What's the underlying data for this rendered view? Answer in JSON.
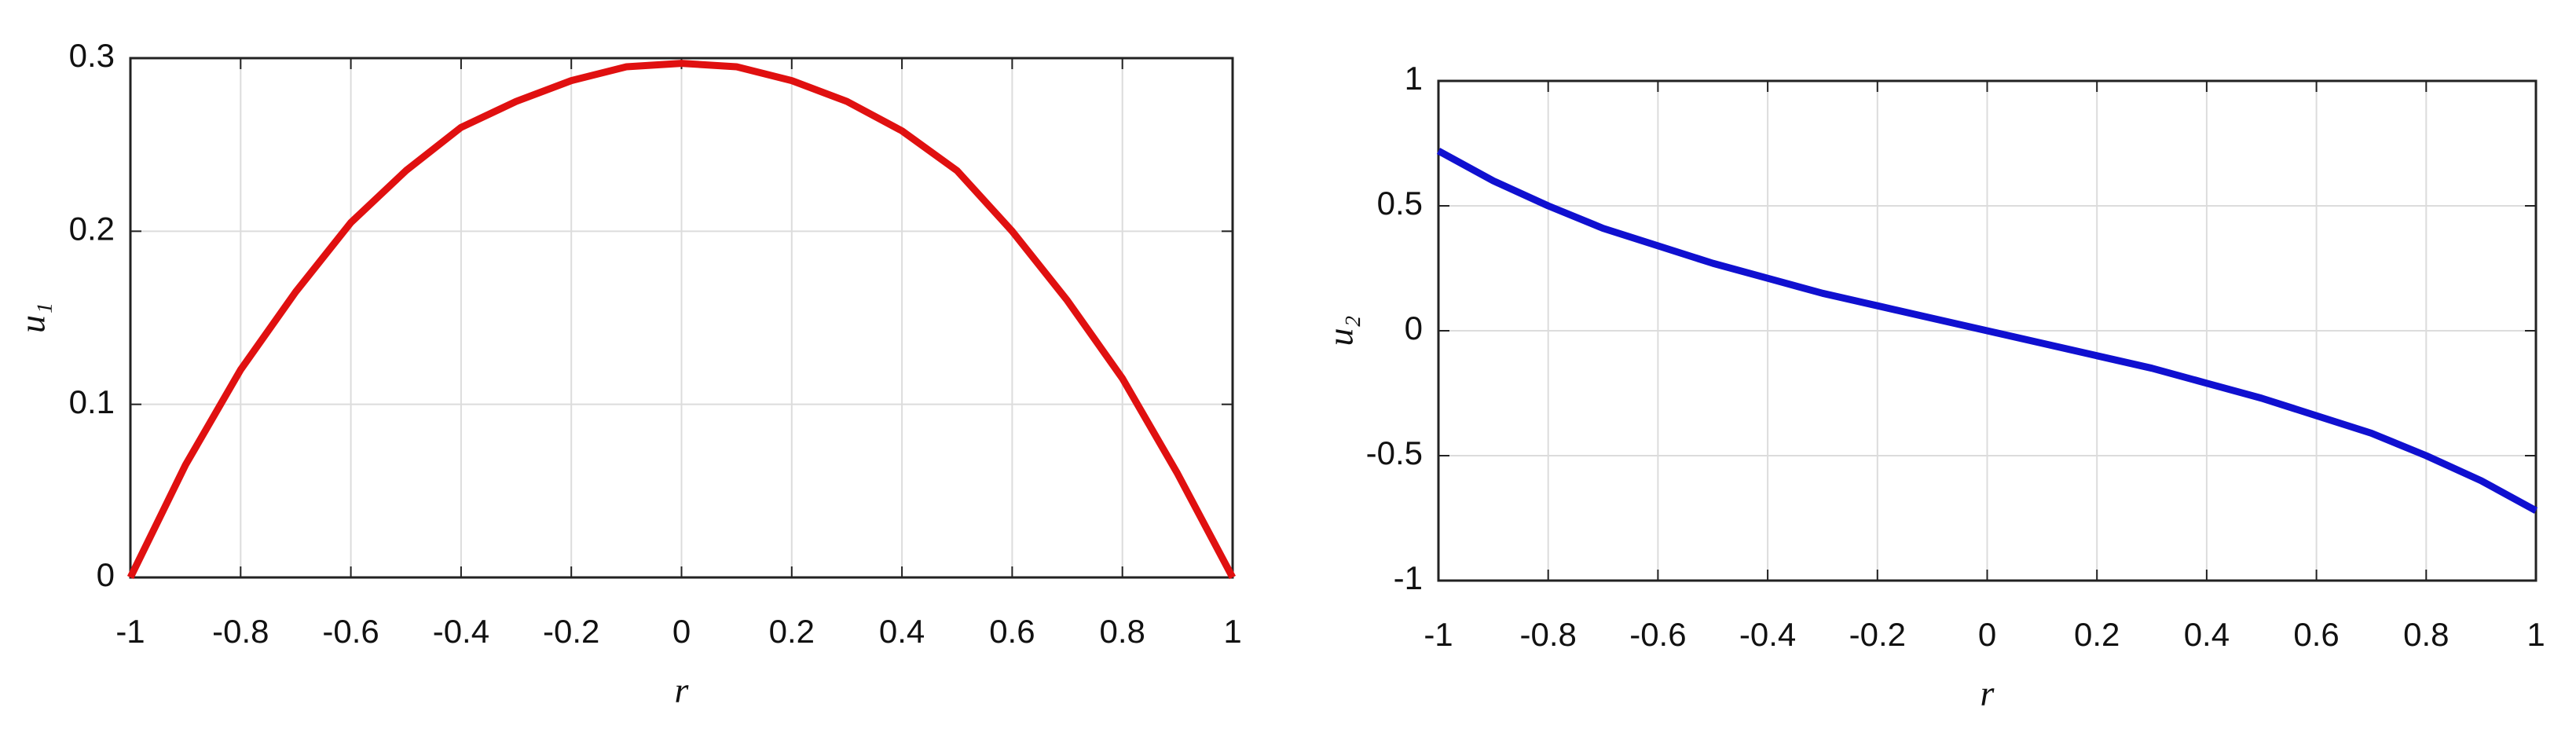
{
  "chart_data": [
    {
      "type": "line",
      "xlabel": "r",
      "ylabel": "u₁",
      "x": [
        -1,
        -0.9,
        -0.8,
        -0.7,
        -0.6,
        -0.5,
        -0.4,
        -0.3,
        -0.2,
        -0.1,
        0,
        0.1,
        0.2,
        0.3,
        0.4,
        0.5,
        0.6,
        0.7,
        0.8,
        0.9,
        1
      ],
      "series": [
        {
          "color": "#e01010",
          "values": [
            0,
            0.065,
            0.12,
            0.165,
            0.205,
            0.235,
            0.26,
            0.275,
            0.287,
            0.295,
            0.297,
            0.295,
            0.287,
            0.275,
            0.258,
            0.235,
            0.2,
            0.16,
            0.115,
            0.06,
            0
          ]
        }
      ],
      "xlim": [
        -1,
        1
      ],
      "ylim": [
        0,
        0.3
      ],
      "xticks": [
        -1,
        -0.8,
        -0.6,
        -0.4,
        -0.2,
        0,
        0.2,
        0.4,
        0.6,
        0.8,
        1
      ],
      "yticks": [
        0,
        0.1,
        0.2,
        0.3
      ],
      "grid": true
    },
    {
      "type": "line",
      "xlabel": "r",
      "ylabel": "u₂",
      "x": [
        -1,
        -0.9,
        -0.8,
        -0.7,
        -0.6,
        -0.5,
        -0.4,
        -0.3,
        -0.2,
        -0.1,
        0,
        0.1,
        0.2,
        0.3,
        0.4,
        0.5,
        0.6,
        0.7,
        0.8,
        0.9,
        1
      ],
      "series": [
        {
          "color": "#1010d0",
          "values": [
            0.72,
            0.6,
            0.5,
            0.41,
            0.34,
            0.27,
            0.21,
            0.15,
            0.1,
            0.05,
            0,
            -0.05,
            -0.1,
            -0.15,
            -0.21,
            -0.27,
            -0.34,
            -0.41,
            -0.5,
            -0.6,
            -0.72
          ]
        }
      ],
      "xlim": [
        -1,
        1
      ],
      "ylim": [
        -1,
        1
      ],
      "xticks": [
        -1,
        -0.8,
        -0.6,
        -0.4,
        -0.2,
        0,
        0.2,
        0.4,
        0.6,
        0.8,
        1
      ],
      "yticks": [
        -1,
        -0.5,
        0,
        0.5,
        1
      ],
      "grid": true
    }
  ]
}
